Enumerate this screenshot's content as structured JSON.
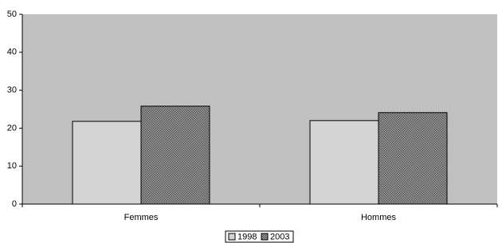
{
  "chart_data": {
    "type": "bar",
    "categories": [
      "Femmes",
      "Hommes"
    ],
    "series": [
      {
        "name": "1998",
        "color": "#d4d4d4",
        "values": [
          21.8,
          22
        ]
      },
      {
        "name": "2003",
        "color": "#7a7a7a",
        "values": [
          25.8,
          24.1
        ]
      }
    ],
    "ylim": [
      0,
      50
    ],
    "yticks": [
      0,
      10,
      20,
      30,
      40,
      50
    ],
    "grid": false,
    "legend": "bottom"
  }
}
